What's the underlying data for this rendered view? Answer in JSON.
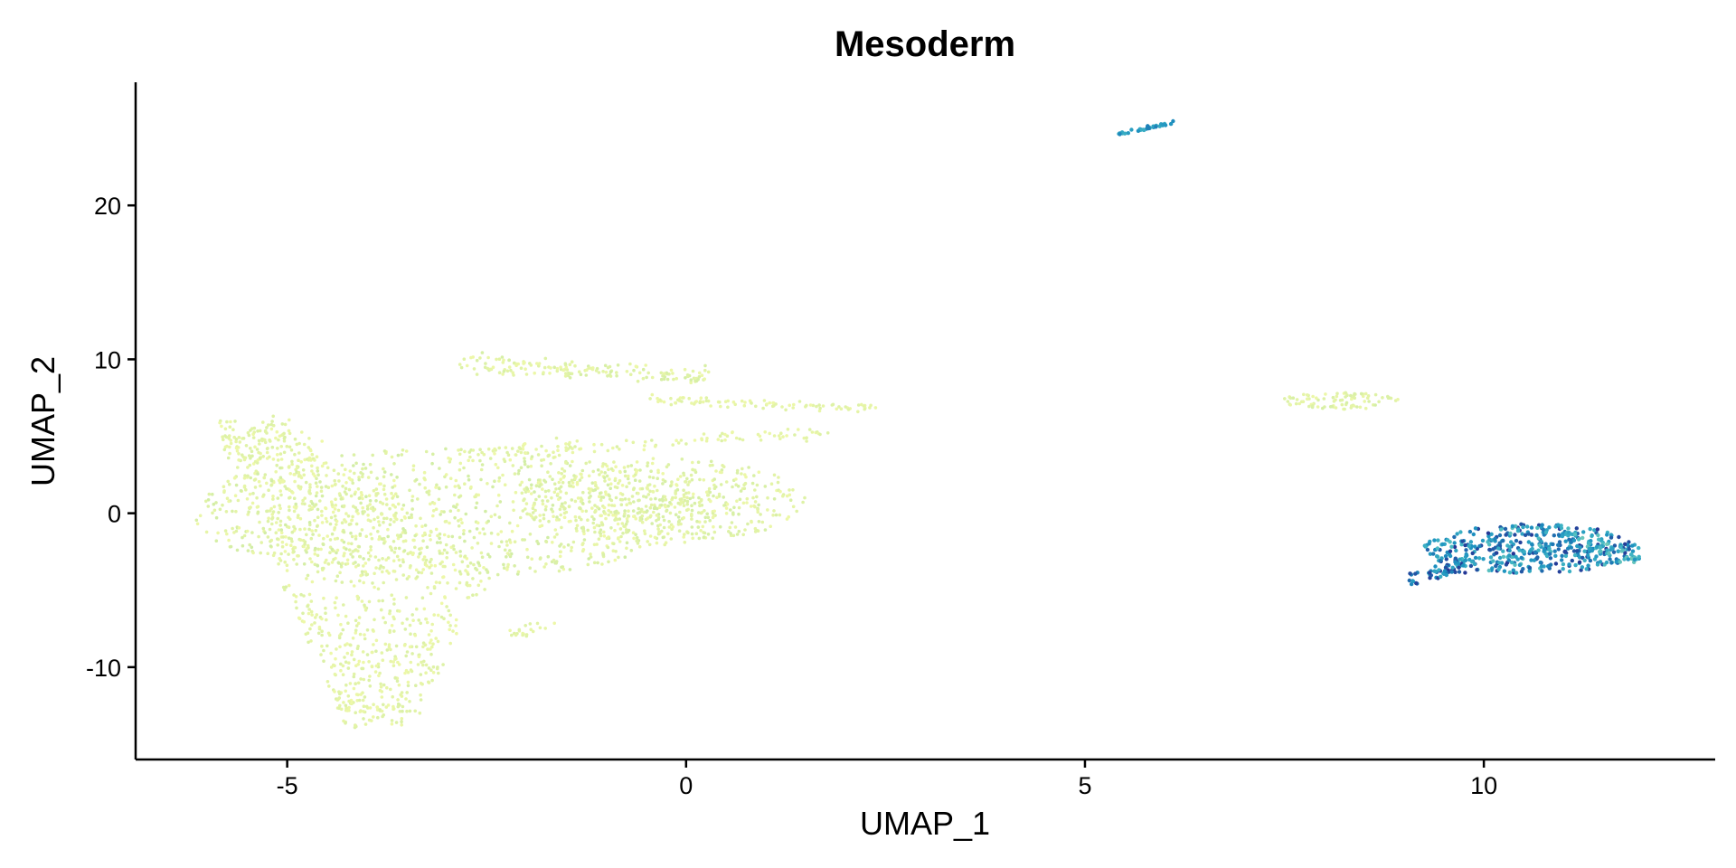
{
  "chart_data": {
    "type": "scatter",
    "title": "Mesoderm",
    "xlabel": "UMAP_1",
    "ylabel": "UMAP_2",
    "xlim": [
      -6.9,
      12.9
    ],
    "ylim": [
      -16,
      28
    ],
    "xticks": [
      -5,
      0,
      5,
      10
    ],
    "yticks": [
      -10,
      0,
      10,
      20
    ],
    "xtick_labels": [
      "-5",
      "0",
      "5",
      "10"
    ],
    "ytick_labels": [
      "-10",
      "0",
      "10",
      "20"
    ],
    "grid": false,
    "legend": "none",
    "colors": {
      "low": "#eef8a8",
      "low_mid": "#c5e8a5",
      "mid": "#41b6c4",
      "high": "#1d91c0",
      "max": "#253494"
    },
    "clusters": [
      {
        "name": "main-left",
        "shape": "band",
        "x0": -5.9,
        "y0": 5.8,
        "x1": -4.3,
        "y1": -13.6,
        "spread": 4.5,
        "n": 900,
        "level": [
          0.0,
          0.12
        ]
      },
      {
        "name": "main-core",
        "shape": "ellipse",
        "cx": -3.0,
        "cy": 0.0,
        "rx": 3.2,
        "ry": 4.2,
        "n": 900,
        "level": [
          0.0,
          0.18
        ]
      },
      {
        "name": "main-arm",
        "shape": "ellipse",
        "cx": -0.3,
        "cy": 0.8,
        "rx": 1.8,
        "ry": 2.8,
        "n": 500,
        "level": [
          0.0,
          0.15
        ]
      },
      {
        "name": "upper-streak-a",
        "shape": "line",
        "x0": -2.8,
        "y0": 9.8,
        "x1": 0.2,
        "y1": 8.8,
        "jitter": 0.5,
        "n": 160,
        "level": [
          0.0,
          0.16
        ]
      },
      {
        "name": "upper-streak-b",
        "shape": "line",
        "x0": -0.5,
        "y0": 7.4,
        "x1": 2.4,
        "y1": 6.8,
        "jitter": 0.25,
        "n": 90,
        "level": [
          0.0,
          0.1
        ]
      },
      {
        "name": "mid-streak",
        "shape": "line",
        "x0": -2.6,
        "y0": 4.0,
        "x1": 1.8,
        "y1": 5.2,
        "jitter": 0.4,
        "n": 110,
        "level": [
          0.0,
          0.12
        ]
      },
      {
        "name": "lower-tail",
        "shape": "line",
        "x0": -2.2,
        "y0": -8.0,
        "x1": -1.7,
        "y1": -7.0,
        "jitter": 0.3,
        "n": 20,
        "level": [
          0.0,
          0.1
        ]
      },
      {
        "name": "small-right",
        "shape": "ellipse",
        "cx": 8.2,
        "cy": 7.3,
        "rx": 0.75,
        "ry": 0.55,
        "n": 90,
        "level": [
          0.0,
          0.15
        ]
      },
      {
        "name": "top-streak",
        "shape": "line",
        "x0": 5.4,
        "y0": 24.6,
        "x1": 6.1,
        "y1": 25.4,
        "jitter": 0.08,
        "n": 40,
        "level": [
          0.55,
          0.8
        ]
      },
      {
        "name": "high-cluster",
        "shape": "ellipse",
        "cx": 10.6,
        "cy": -2.3,
        "rx": 1.35,
        "ry": 1.6,
        "n": 420,
        "level": [
          0.45,
          1.0
        ]
      },
      {
        "name": "high-cluster-left",
        "shape": "line",
        "x0": 9.1,
        "y0": -4.3,
        "x1": 9.9,
        "y1": -3.0,
        "jitter": 0.45,
        "n": 60,
        "level": [
          0.55,
          1.0
        ]
      },
      {
        "name": "high-cluster-right",
        "shape": "line",
        "x0": 11.2,
        "y0": -1.8,
        "x1": 11.9,
        "y1": -3.0,
        "jitter": 0.4,
        "n": 50,
        "level": [
          0.4,
          0.75
        ]
      }
    ]
  }
}
